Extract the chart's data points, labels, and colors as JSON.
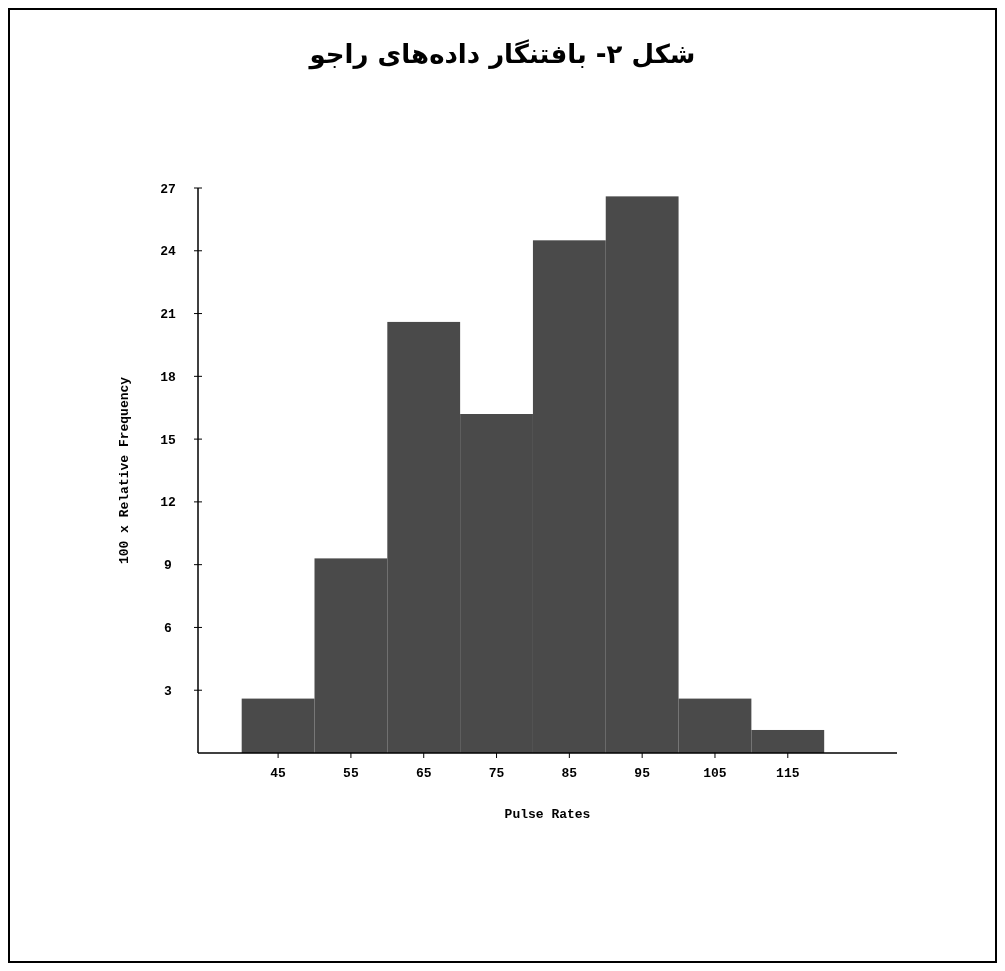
{
  "chart_data": {
    "type": "histogram",
    "title": "شکل ۲- بافتنگار داده‌های راجو",
    "xlabel": "Pulse Rates",
    "ylabel": "100 x Relative Frequency",
    "bins": [
      40,
      50,
      60,
      70,
      80,
      90,
      100,
      110,
      120
    ],
    "values": [
      2.6,
      9.3,
      20.6,
      16.2,
      24.5,
      26.6,
      2.6,
      1.1
    ],
    "color": "#4a4a4a",
    "xlim": [
      34,
      130
    ],
    "xticks": [
      45,
      55,
      65,
      75,
      85,
      95,
      105,
      115
    ],
    "ylim": [
      0,
      27
    ],
    "yticks": [
      3,
      6,
      9,
      12,
      15,
      18,
      21,
      24,
      27
    ],
    "grid": false
  }
}
